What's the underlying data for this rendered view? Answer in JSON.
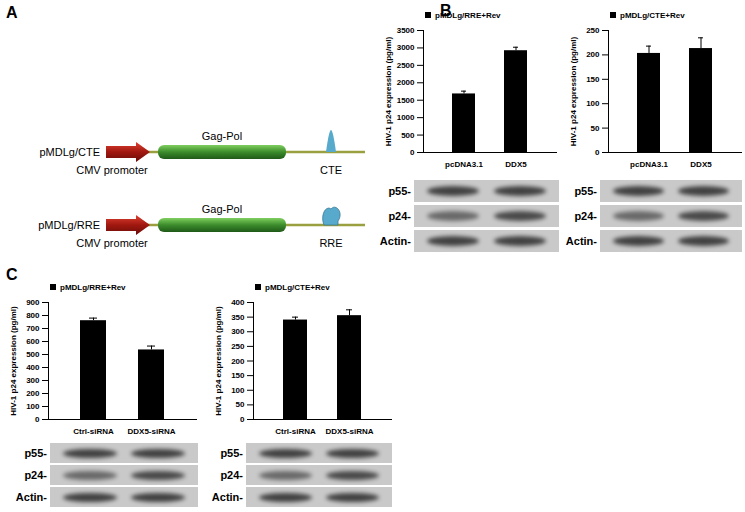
{
  "panel_labels": [
    "A",
    "B",
    "C"
  ],
  "diagram": {
    "constructs": [
      {
        "name": "pMDLg/CTE",
        "promoter": "CMV promoter",
        "gene": "Gag-Pol",
        "element": "CTE"
      },
      {
        "name": "pMDLg/RRE",
        "promoter": "CMV promoter",
        "gene": "Gag-Pol",
        "element": "RRE"
      }
    ]
  },
  "chart_data": [
    {
      "type": "bar",
      "categories": [
        "pcDNA3.1",
        "DDX5"
      ],
      "series": [
        {
          "name": "pMDLg/RRE+Rev",
          "color": "#000000",
          "values": [
            1680,
            2920
          ],
          "errors": [
            80,
            100
          ]
        }
      ],
      "y_label": "HIV-1 p24 expression (pg/ml)",
      "ylim": [
        0,
        3500
      ],
      "yticks": [
        0,
        500,
        1000,
        1500,
        2000,
        2500,
        3000,
        3500
      ],
      "blot": [
        "p55-",
        "p24-",
        "Actin-"
      ]
    },
    {
      "type": "bar",
      "categories": [
        "pcDNA3.1",
        "DDX5"
      ],
      "series": [
        {
          "name": "pMDLg/CTE+Rev",
          "color": "#000000",
          "values": [
            203,
            213
          ],
          "errors": [
            15,
            22
          ]
        }
      ],
      "y_label": "HIV-1 p24 expression (pg/ml)",
      "ylim": [
        0,
        250
      ],
      "yticks": [
        0,
        50,
        100,
        150,
        200,
        250
      ],
      "blot": [
        "p55-",
        "p24-",
        "Actin-"
      ]
    },
    {
      "type": "bar",
      "categories": [
        "Ctrl-siRNA",
        "DDX5-siRNA"
      ],
      "series": [
        {
          "name": "pMDLg/RRE+Rev",
          "color": "#000000",
          "values": [
            760,
            535
          ],
          "errors": [
            20,
            30
          ]
        }
      ],
      "y_label": "HIV-1 p24 expression (pg/ml)",
      "ylim": [
        0,
        900
      ],
      "yticks": [
        0,
        100,
        200,
        300,
        400,
        500,
        600,
        700,
        800,
        900
      ],
      "blot": [
        "p55-",
        "p24-",
        "Actin-"
      ]
    },
    {
      "type": "bar",
      "categories": [
        "Ctrl-siRNA",
        "DDX5-siRNA"
      ],
      "series": [
        {
          "name": "pMDLg/CTE+Rev",
          "color": "#000000",
          "values": [
            340,
            355
          ],
          "errors": [
            10,
            20
          ]
        }
      ],
      "y_label": "HIV-1 p24 expression (pg/ml)",
      "ylim": [
        0,
        400
      ],
      "yticks": [
        0,
        50,
        100,
        150,
        200,
        250,
        300,
        350,
        400
      ],
      "blot": [
        "p55-",
        "p24-",
        "Actin-"
      ]
    }
  ]
}
